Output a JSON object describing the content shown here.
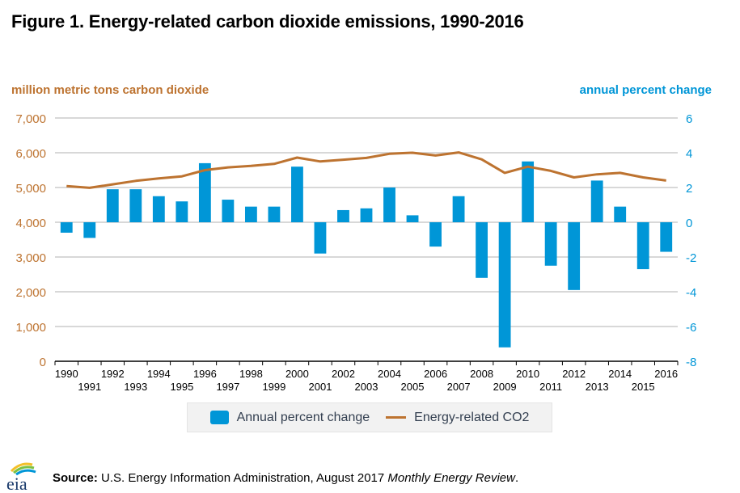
{
  "title": "Figure 1. Energy-related carbon dioxide emissions, 1990-2016",
  "colors": {
    "bar": "#0096d7",
    "line": "#bd7330",
    "left_axis": "#bd7330",
    "right_axis": "#0096d7",
    "grid": "#cccccc"
  },
  "chart_data": {
    "type": "bar+line",
    "title": "Figure 1. Energy-related carbon dioxide emissions, 1990-2016",
    "ylabel_left": "million metric tons carbon dioxide",
    "ylabel_right": "annual percent change",
    "xlabel": "",
    "categories": [
      "1990",
      "1991",
      "1992",
      "1993",
      "1994",
      "1995",
      "1996",
      "1997",
      "1998",
      "1999",
      "2000",
      "2001",
      "2002",
      "2003",
      "2004",
      "2005",
      "2006",
      "2007",
      "2008",
      "2009",
      "2010",
      "2011",
      "2012",
      "2013",
      "2014",
      "2015",
      "2016"
    ],
    "ylim_left": [
      0,
      7000
    ],
    "yticks_left": [
      "0",
      "1,000",
      "2,000",
      "3,000",
      "4,000",
      "5,000",
      "6,000",
      "7,000"
    ],
    "ylim_right": [
      -8,
      6
    ],
    "yticks_right": [
      "-8",
      "-6",
      "-4",
      "-2",
      "0",
      "2",
      "4",
      "6"
    ],
    "grid": true,
    "legend_position": "bottom",
    "series": [
      {
        "name": "Annual percent change",
        "type": "bar",
        "axis": "right",
        "values": [
          -0.6,
          -0.9,
          1.9,
          1.9,
          1.5,
          1.2,
          3.4,
          1.3,
          0.9,
          0.9,
          3.2,
          -1.8,
          0.7,
          0.8,
          2.0,
          0.4,
          -1.4,
          1.5,
          -3.2,
          -7.2,
          3.5,
          -2.5,
          -3.9,
          2.4,
          0.9,
          -2.7,
          -1.7
        ]
      },
      {
        "name": "Energy-related CO2",
        "type": "line",
        "axis": "left",
        "values": [
          5040,
          4990,
          5090,
          5190,
          5260,
          5320,
          5500,
          5580,
          5620,
          5680,
          5860,
          5750,
          5800,
          5850,
          5970,
          6000,
          5920,
          6010,
          5810,
          5420,
          5600,
          5480,
          5290,
          5380,
          5420,
          5290,
          5200
        ]
      }
    ]
  },
  "legend": {
    "bar_label": "Annual percent change",
    "line_label": "Energy-related CO2"
  },
  "footer": {
    "logo_text": "eia",
    "source_label": "Source:",
    "source_text": " U.S. Energy Information Administration, August 2017 ",
    "source_italic": "Monthly Energy Review",
    "source_end": "."
  }
}
